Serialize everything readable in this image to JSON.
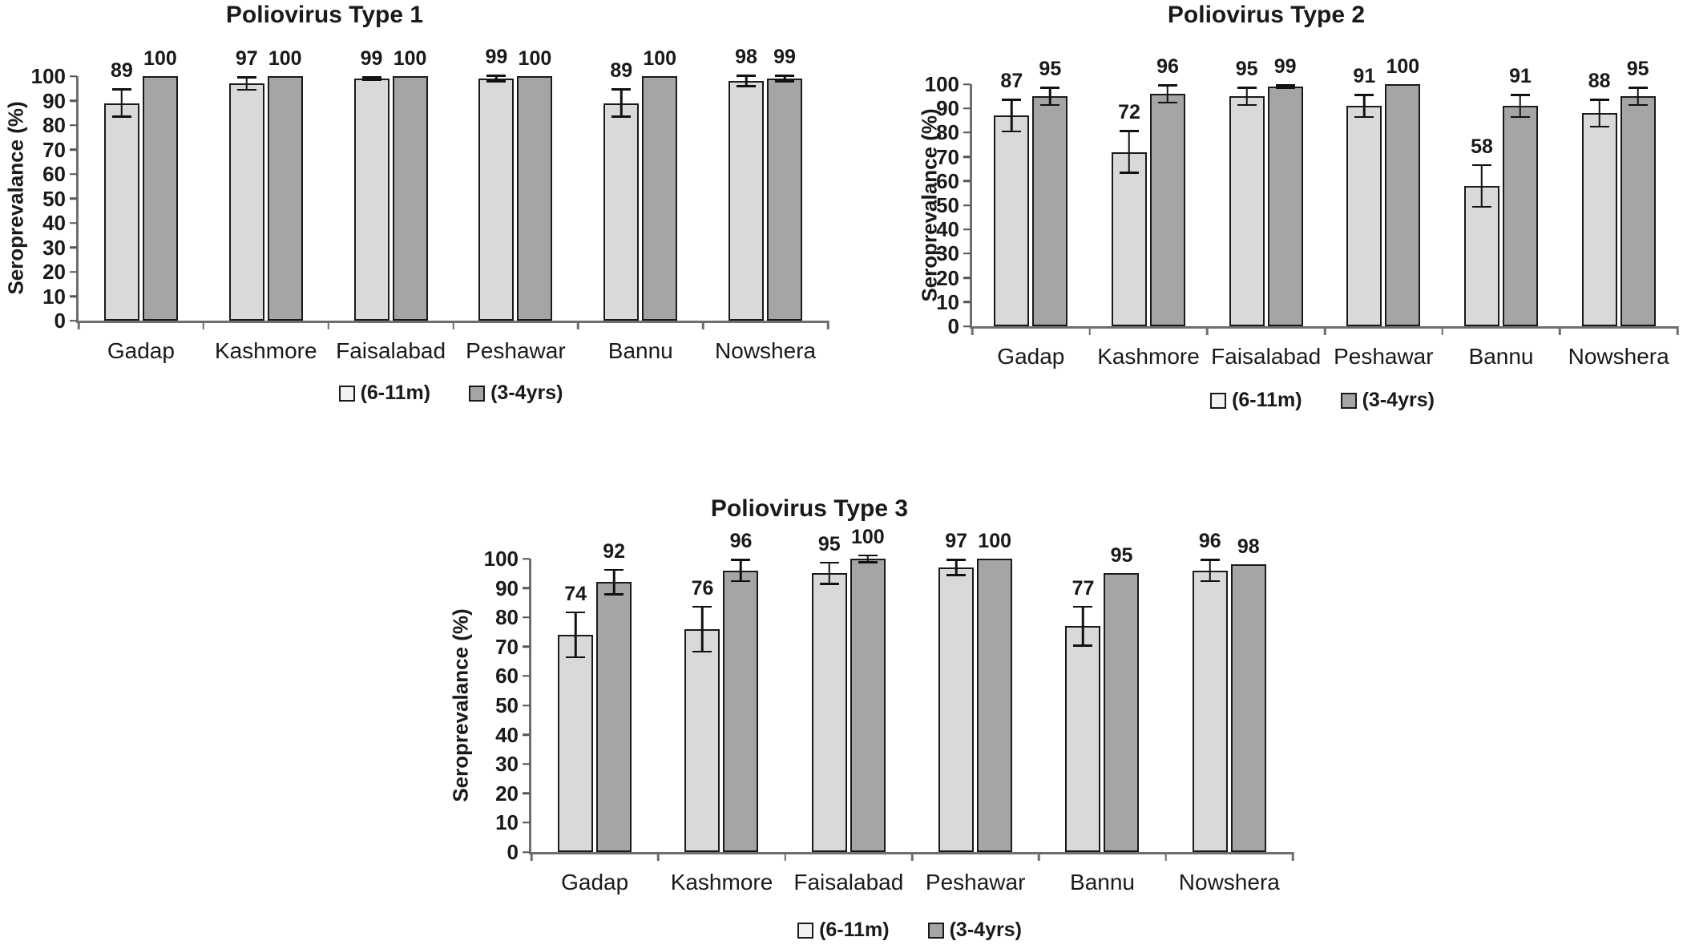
{
  "figure": {
    "background": "#ffffff",
    "text_color": "#1a1a1a"
  },
  "colors": {
    "light_bar": "#d9d9d9",
    "dark_bar": "#a5a5a5",
    "bar_border": "#1a1a1a",
    "axis_line": "#6e6e6e",
    "error_bar": "#111111"
  },
  "chart_data": [
    {
      "type": "bar",
      "title": "Poliovirus Type 1",
      "ylabel": "Seroprevalance (%)",
      "xlabel": "",
      "ylim": [
        0,
        100
      ],
      "yticks": [
        0,
        10,
        20,
        30,
        40,
        50,
        60,
        70,
        80,
        90,
        100
      ],
      "grid": false,
      "legend_position": "bottom",
      "categories": [
        "Gadap",
        "Kashmore",
        "Faisalabad",
        "Peshawar",
        "Bannu",
        "Nowshera"
      ],
      "series": [
        {
          "name": "(6-11m)",
          "values": [
            89,
            97,
            99,
            99,
            89,
            98
          ],
          "errors": [
            6,
            3,
            1,
            1.5,
            6,
            2.5
          ]
        },
        {
          "name": "(3-4yrs)",
          "values": [
            100,
            100,
            100,
            100,
            100,
            99
          ],
          "errors": [
            0,
            0,
            0,
            0,
            0,
            1.5
          ]
        }
      ]
    },
    {
      "type": "bar",
      "title": "Poliovirus Type 2",
      "ylabel": "Seroprevalance (%)",
      "xlabel": "",
      "ylim": [
        0,
        100
      ],
      "yticks": [
        0,
        10,
        20,
        30,
        40,
        50,
        60,
        70,
        80,
        90,
        100
      ],
      "grid": false,
      "legend_position": "bottom",
      "categories": [
        "Gadap",
        "Kashmore",
        "Faisalabad",
        "Peshawar",
        "Bannu",
        "Nowshera"
      ],
      "series": [
        {
          "name": "(6-11m)",
          "values": [
            87,
            72,
            95,
            91,
            58,
            88
          ],
          "errors": [
            7,
            9,
            4,
            5,
            9,
            6
          ]
        },
        {
          "name": "(3-4yrs)",
          "values": [
            95,
            96,
            99,
            100,
            91,
            95
          ],
          "errors": [
            4,
            4,
            1,
            0,
            5,
            4
          ]
        }
      ]
    },
    {
      "type": "bar",
      "title": "Poliovirus Type 3",
      "ylabel": "Seroprevalance (%)",
      "xlabel": "",
      "ylim": [
        0,
        100
      ],
      "yticks": [
        0,
        10,
        20,
        30,
        40,
        50,
        60,
        70,
        80,
        90,
        100
      ],
      "grid": false,
      "legend_position": "bottom",
      "categories": [
        "Gadap",
        "Kashmore",
        "Faisalabad",
        "Peshawar",
        "Bannu",
        "Nowshera"
      ],
      "series": [
        {
          "name": "(6-11m)",
          "values": [
            74,
            76,
            95,
            97,
            77,
            96
          ],
          "errors": [
            8,
            8,
            4,
            3,
            7,
            4
          ]
        },
        {
          "name": "(3-4yrs)",
          "values": [
            92,
            96,
            100,
            100,
            95,
            98
          ],
          "errors": [
            4.5,
            4,
            1.5,
            0,
            0,
            0
          ]
        }
      ]
    }
  ]
}
